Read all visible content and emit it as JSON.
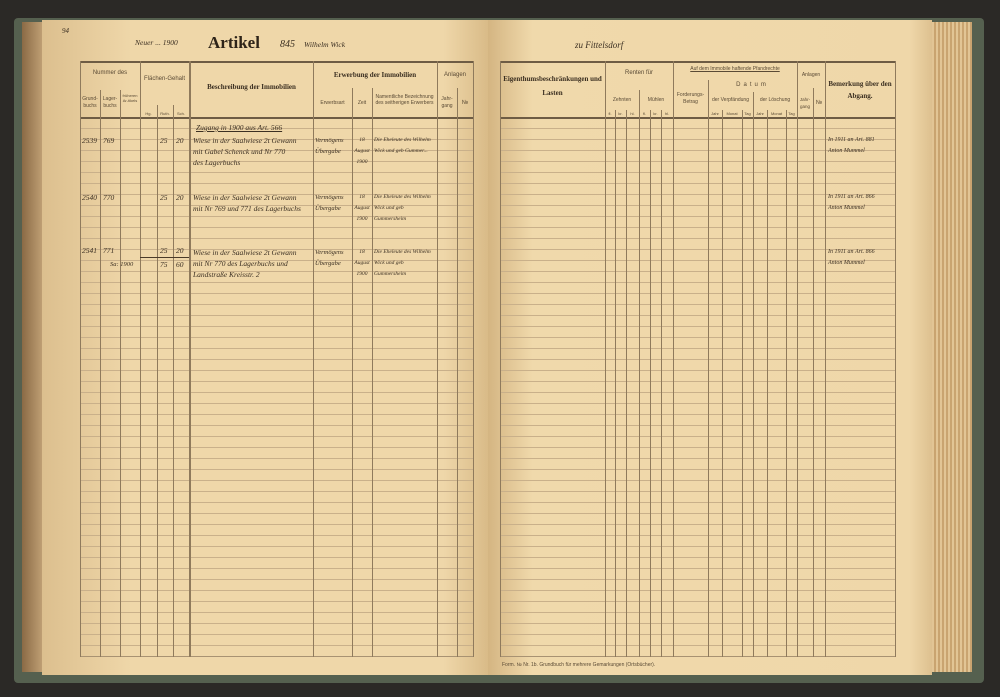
{
  "left_page": {
    "page_number": "94",
    "header_note": "Neuer ... 1900",
    "title": "Artikel",
    "article_number": "845",
    "owner": "Wilhelm Wick",
    "columns": {
      "nummer": "Nummer des",
      "grundbuch": "Grund-buchs",
      "lagerbuch": "Lager-buchs",
      "fruehere": "früheren Ar-tikels",
      "flaechen": "Flächen-Gehalt",
      "ha": "Hg.",
      "ruth": "Ruth.",
      "sch": "Sch.",
      "beschreibung": "Beschreibung der Immobilien",
      "erwerbung": "Erwerbung der Immobilien",
      "erwerbsart": "Erwerbsart",
      "zeit": "Zeit",
      "bezeichnung": "Namentliche Bezeichnung des seitherigen Erwerbers",
      "anlagen": "Anlagen",
      "jahrgang": "Jahr-gang",
      "nr": "№"
    },
    "heading_entry": "Zugang in 1900 aus Art. 566",
    "entries": [
      {
        "grundbuch": "2539",
        "lagerbuch": "769",
        "ruth": "25",
        "sch": "20",
        "description": [
          "Wiese in der Saalwiese 2t Gewann",
          "mit Gabel Schenck und Nr 770",
          "des Lagerbuchs"
        ],
        "erwerbsart": [
          "Vermögens",
          "Übergabe"
        ],
        "zeit": [
          "18",
          "August",
          "1900"
        ],
        "erwerber": [
          "Die Eheleute des Wilhelm",
          "Wick und geb Gummer..."
        ]
      },
      {
        "grundbuch": "2540",
        "lagerbuch": "770",
        "ruth": "25",
        "sch": "20",
        "description": [
          "Wiese in der Saalwiese 2t Gewann",
          "mit Nr 769 und 771 des Lagerbuchs"
        ],
        "erwerbsart": [
          "Vermögens",
          "Übergabe"
        ],
        "zeit": [
          "18",
          "August",
          "1900"
        ],
        "erwerber": [
          "Die Eheleute des Wilhelm",
          "Wick und geb",
          "Gummersheim"
        ]
      },
      {
        "grundbuch": "2541",
        "lagerbuch": "771",
        "fruehere": "Sa: 1900",
        "ruth": "25",
        "sch": "20",
        "total_ruth": "75",
        "total_sch": "60",
        "description": [
          "Wiese in der Saalwiese 2t Gewann",
          "mit Nr 770 des Lagerbuchs und",
          "Landstraße Kreisstr. 2"
        ],
        "erwerbsart": [
          "Vermögens",
          "Übergabe"
        ],
        "zeit": [
          "18",
          "August",
          "1900"
        ],
        "erwerber": [
          "Die Eheleute des Wilhelm",
          "Wick und geb",
          "Gummersheim"
        ]
      }
    ]
  },
  "right_page": {
    "header_note": "zu Fittelsdorf",
    "columns": {
      "eigentum": "Eigenthumsbeschränkungen und Lasten",
      "renten": "Renten für",
      "schoeffen": "Zehnten",
      "muehlen": "Mühlen",
      "fl": "fl.",
      "kr": "kr.",
      "hl": "hl.",
      "pfandrechte": "Auf dem Immobile haftende Pfandrechte",
      "forderung": "Forderungs-Betrag",
      "datum": "Datum",
      "verpfaendung": "der Verpfändung",
      "loeschung": "der Löschung",
      "jahr": "Jahr",
      "monat": "Monat",
      "tag": "Tag",
      "anlagen": "Anlagen",
      "jahrgang": "Jahr-gang",
      "nr": "№",
      "bemerkung": "Bemerkung über den Abgang."
    },
    "remarks": [
      "In 1911 an Art. 881",
      "Anton Mummel",
      "In 1911 an Art. 866",
      "Anton Mummel",
      "In 1911 an Art. 866",
      "Anton Mummel"
    ],
    "footer": "Form. № Nr. 1b. Grundbuch für mehrere Gemarkungen (Ortsbücher)."
  },
  "colors": {
    "paper": "#efd7a9",
    "ink": "#3b2f22",
    "cover": "#55604f",
    "background": "#2b2926"
  }
}
